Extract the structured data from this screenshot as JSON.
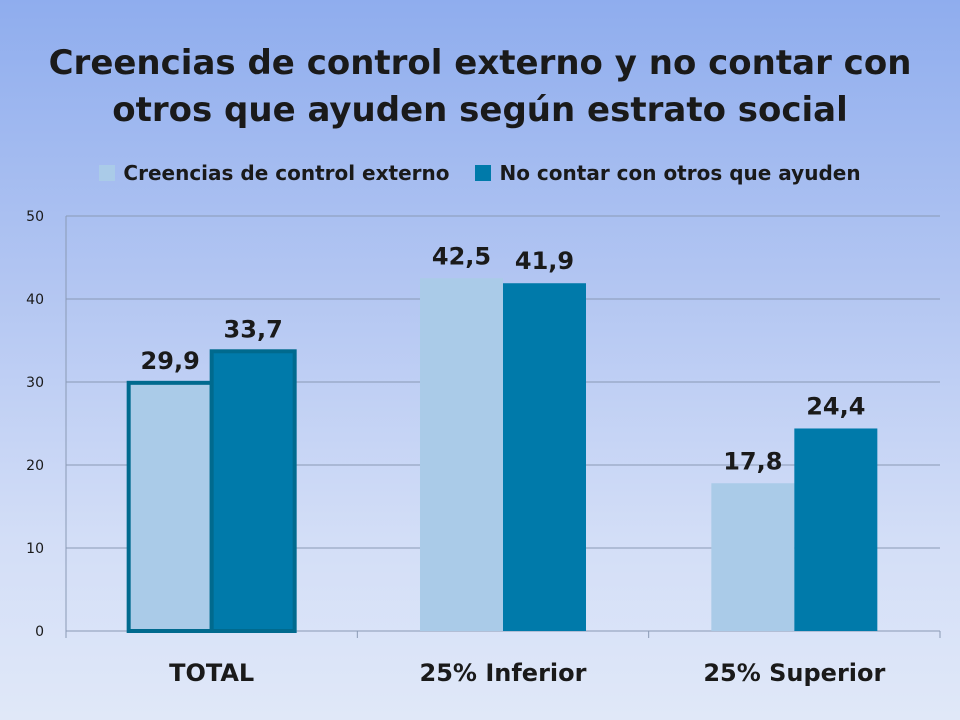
{
  "colors": {
    "series1": "#aacbe8",
    "series2": "#007aaa",
    "highlight_border": "#006a8e",
    "grid": "#8a9ab5",
    "text": "#1a1a1a"
  },
  "chart_data": {
    "type": "bar",
    "title": "Creencias de control externo y no contar con otros que ayuden según estrato social",
    "title_lines": [
      "Creencias de control externo y no contar con",
      "otros que ayuden según estrato social"
    ],
    "categories": [
      "TOTAL",
      "25% Inferior",
      "25% Superior"
    ],
    "series": [
      {
        "name": "Creencias de control externo",
        "values": [
          29.9,
          42.5,
          17.8
        ],
        "labels": [
          "29,9",
          "42,5",
          "17,8"
        ]
      },
      {
        "name": "No contar con otros que ayuden",
        "values": [
          33.7,
          41.9,
          24.4
        ],
        "labels": [
          "33,7",
          "41,9",
          "24,4"
        ]
      }
    ],
    "ylim": [
      0,
      50
    ],
    "yticks": [
      0,
      10,
      20,
      30,
      40,
      50
    ],
    "xlabel": "",
    "ylabel": "",
    "grid": true,
    "legend": "top",
    "highlighted_category": "TOTAL"
  }
}
